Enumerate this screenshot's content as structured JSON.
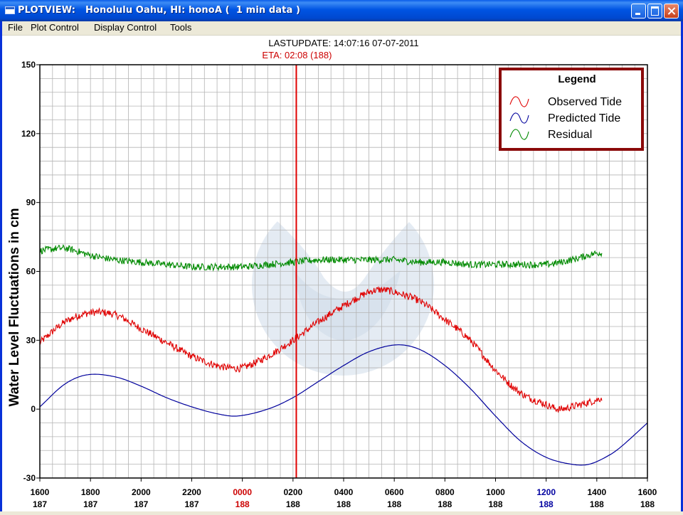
{
  "window": {
    "title": "PLOTVIEW:   Honolulu Oahu, HI: honoA (  1 min data )",
    "icon": "app-window-icon",
    "controls": [
      "minimize",
      "maximize",
      "close"
    ]
  },
  "menu": {
    "items": [
      "File",
      "Plot Control",
      "Display Control",
      "Tools"
    ]
  },
  "header": {
    "last_update": "LASTUPDATE: 14:07:16  07-07-2011",
    "eta": "ETA: 02:08 (188)"
  },
  "legend": {
    "title": "Legend",
    "entries": [
      {
        "label": "Observed Tide",
        "color": "#e00000"
      },
      {
        "label": "Predicted Tide",
        "color": "#00009c"
      },
      {
        "label": "Residual",
        "color": "#008a00"
      }
    ]
  },
  "colors": {
    "observed": "#e00000",
    "predicted": "#00009c",
    "residual": "#008a00",
    "eta_line": "#e00000",
    "legend_border": "#8b0a0a",
    "highlight_red": "#cc0000",
    "highlight_blue": "#0000a0"
  },
  "chart_data": {
    "type": "line",
    "ylabel": "Water Level Fluctuations in cm",
    "ylim": [
      -30,
      150
    ],
    "yticks": [
      -30,
      0,
      30,
      60,
      90,
      120,
      150
    ],
    "xlim": [
      0,
      24
    ],
    "x_unit": "hours from 1600 (day 187)",
    "x_ticks": [
      {
        "x": 0,
        "time": "1600",
        "day": "187",
        "style": "normal"
      },
      {
        "x": 2,
        "time": "1800",
        "day": "187",
        "style": "normal"
      },
      {
        "x": 4,
        "time": "2000",
        "day": "187",
        "style": "normal"
      },
      {
        "x": 6,
        "time": "2200",
        "day": "187",
        "style": "normal"
      },
      {
        "x": 8,
        "time": "0000",
        "day": "188",
        "style": "red"
      },
      {
        "x": 10,
        "time": "0200",
        "day": "188",
        "style": "normal"
      },
      {
        "x": 12,
        "time": "0400",
        "day": "188",
        "style": "normal"
      },
      {
        "x": 14,
        "time": "0600",
        "day": "188",
        "style": "normal"
      },
      {
        "x": 16,
        "time": "0800",
        "day": "188",
        "style": "normal"
      },
      {
        "x": 18,
        "time": "1000",
        "day": "188",
        "style": "normal"
      },
      {
        "x": 20,
        "time": "1200",
        "day": "188",
        "style": "blue"
      },
      {
        "x": 22,
        "time": "1400",
        "day": "188",
        "style": "normal"
      },
      {
        "x": 24,
        "time": "1600",
        "day": "188",
        "style": "normal"
      }
    ],
    "eta_x": 10.13,
    "grid": true,
    "legend_position": "top-right",
    "series": [
      {
        "name": "Observed Tide",
        "x": [
          0,
          1,
          2,
          3,
          4,
          5,
          6,
          7,
          7.5,
          8,
          9,
          10,
          11,
          12,
          13,
          13.5,
          14,
          15,
          16,
          17,
          18,
          19,
          20,
          20.5,
          21,
          22,
          22.2
        ],
        "y": [
          29,
          38,
          42,
          41,
          35,
          29,
          23,
          19,
          18,
          18,
          23,
          30,
          38,
          45,
          51,
          52,
          51,
          47,
          39,
          30,
          17,
          7,
          2,
          0,
          1,
          4,
          5
        ],
        "noise": 1.6
      },
      {
        "name": "Predicted Tide",
        "x": [
          0,
          1,
          1.9,
          3,
          4,
          5,
          6,
          7,
          7.8,
          9,
          10,
          11,
          12,
          13,
          14.1,
          15,
          16,
          17,
          18,
          19,
          20,
          21,
          21.7,
          22.5,
          23,
          24
        ],
        "y": [
          1,
          11,
          15,
          14,
          10,
          5,
          1,
          -2,
          -3,
          0,
          5,
          12,
          19,
          25,
          28,
          26,
          19,
          9,
          -3,
          -14,
          -21,
          -24,
          -24,
          -20,
          -16,
          -6
        ],
        "noise": 0
      },
      {
        "name": "Residual",
        "x": [
          0,
          1,
          2,
          3,
          4,
          5,
          6,
          7,
          8,
          9,
          10,
          11,
          12,
          13,
          14,
          15,
          16,
          17,
          18,
          19,
          20,
          21,
          22,
          22.2
        ],
        "y": [
          69,
          70,
          67,
          65,
          64,
          63,
          62,
          62,
          62,
          63,
          64,
          65,
          65,
          65,
          65,
          64,
          64,
          63,
          63,
          63,
          63,
          65,
          68,
          68
        ],
        "noise": 1.5
      }
    ]
  }
}
